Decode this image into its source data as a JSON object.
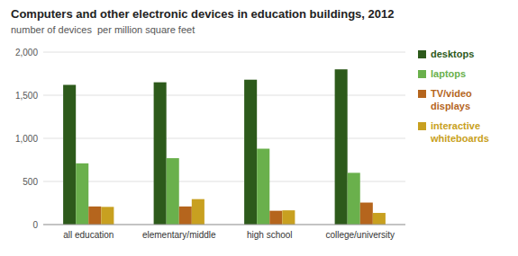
{
  "chart_data": {
    "type": "bar",
    "title": "Computers and other electronic devices in education buildings, 2012",
    "subtitle": "number of devices  per million square feet",
    "categories": [
      "all education",
      "elementary/middle",
      "high school",
      "college/university"
    ],
    "series": [
      {
        "name": "desktops",
        "color": "#2d5a1b",
        "values": [
          1620,
          1650,
          1680,
          1800
        ]
      },
      {
        "name": "laptops",
        "color": "#6ab04c",
        "values": [
          710,
          770,
          880,
          600
        ]
      },
      {
        "name": "TV/video displays",
        "color": "#b5651d",
        "values": [
          210,
          210,
          160,
          255
        ]
      },
      {
        "name": "interactive whiteboards",
        "color": "#c8a020",
        "values": [
          205,
          295,
          165,
          135
        ]
      }
    ],
    "ylim": [
      0,
      2000
    ],
    "yticks": [
      0,
      500,
      {
        "value": 1000,
        "label": "1,000"
      },
      {
        "value": 1500,
        "label": "1,500"
      },
      {
        "value": 2000,
        "label": "2,000"
      }
    ],
    "grid": true,
    "legend": "right"
  }
}
